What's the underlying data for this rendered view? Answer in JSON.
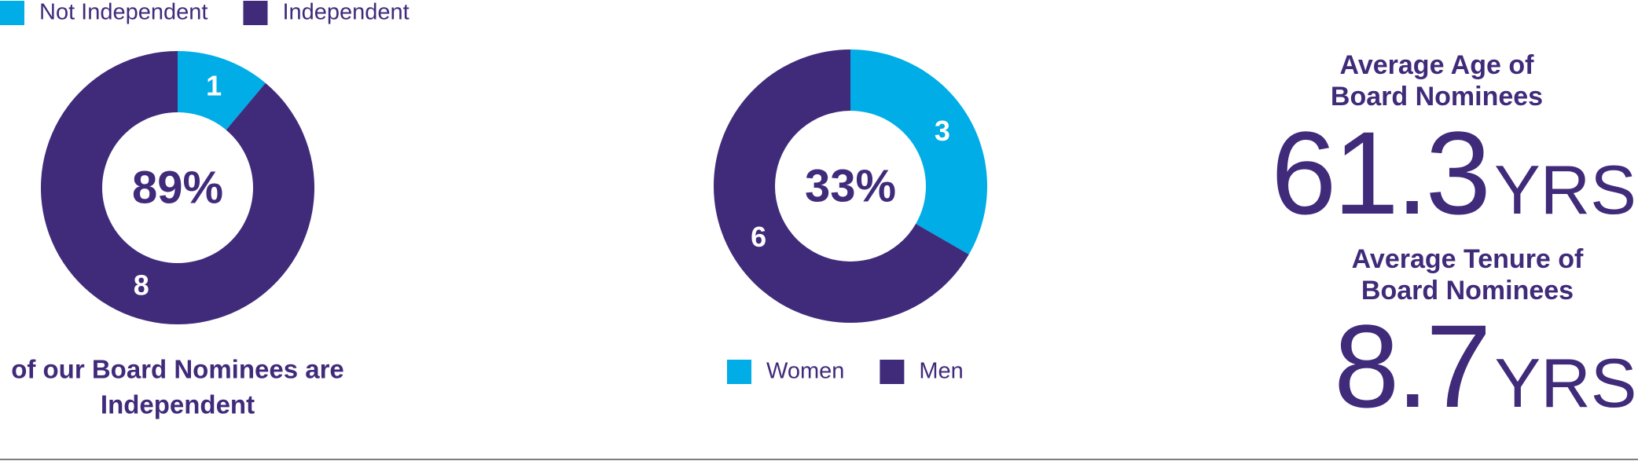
{
  "chart_data": [
    {
      "type": "donut",
      "categories": [
        "Not Independent",
        "Independent"
      ],
      "values": [
        1,
        8
      ],
      "colors": [
        "#00ade6",
        "#402a7a"
      ],
      "center_label": "89%",
      "legend": "top",
      "caption": [
        "of our Board Nominees are",
        "Independent"
      ]
    },
    {
      "type": "donut",
      "categories": [
        "Women",
        "Men"
      ],
      "values": [
        3,
        6
      ],
      "colors": [
        "#00ade6",
        "#402a7a"
      ],
      "center_label": "33%",
      "legend": "bottom"
    }
  ],
  "stats": [
    {
      "label": [
        "Average Age of",
        "Board Nominees"
      ],
      "value": "61.3",
      "unit": "YRS"
    },
    {
      "label": [
        "Average Tenure of",
        "Board Nominees"
      ],
      "value": "8.7",
      "unit": "YRS"
    }
  ]
}
